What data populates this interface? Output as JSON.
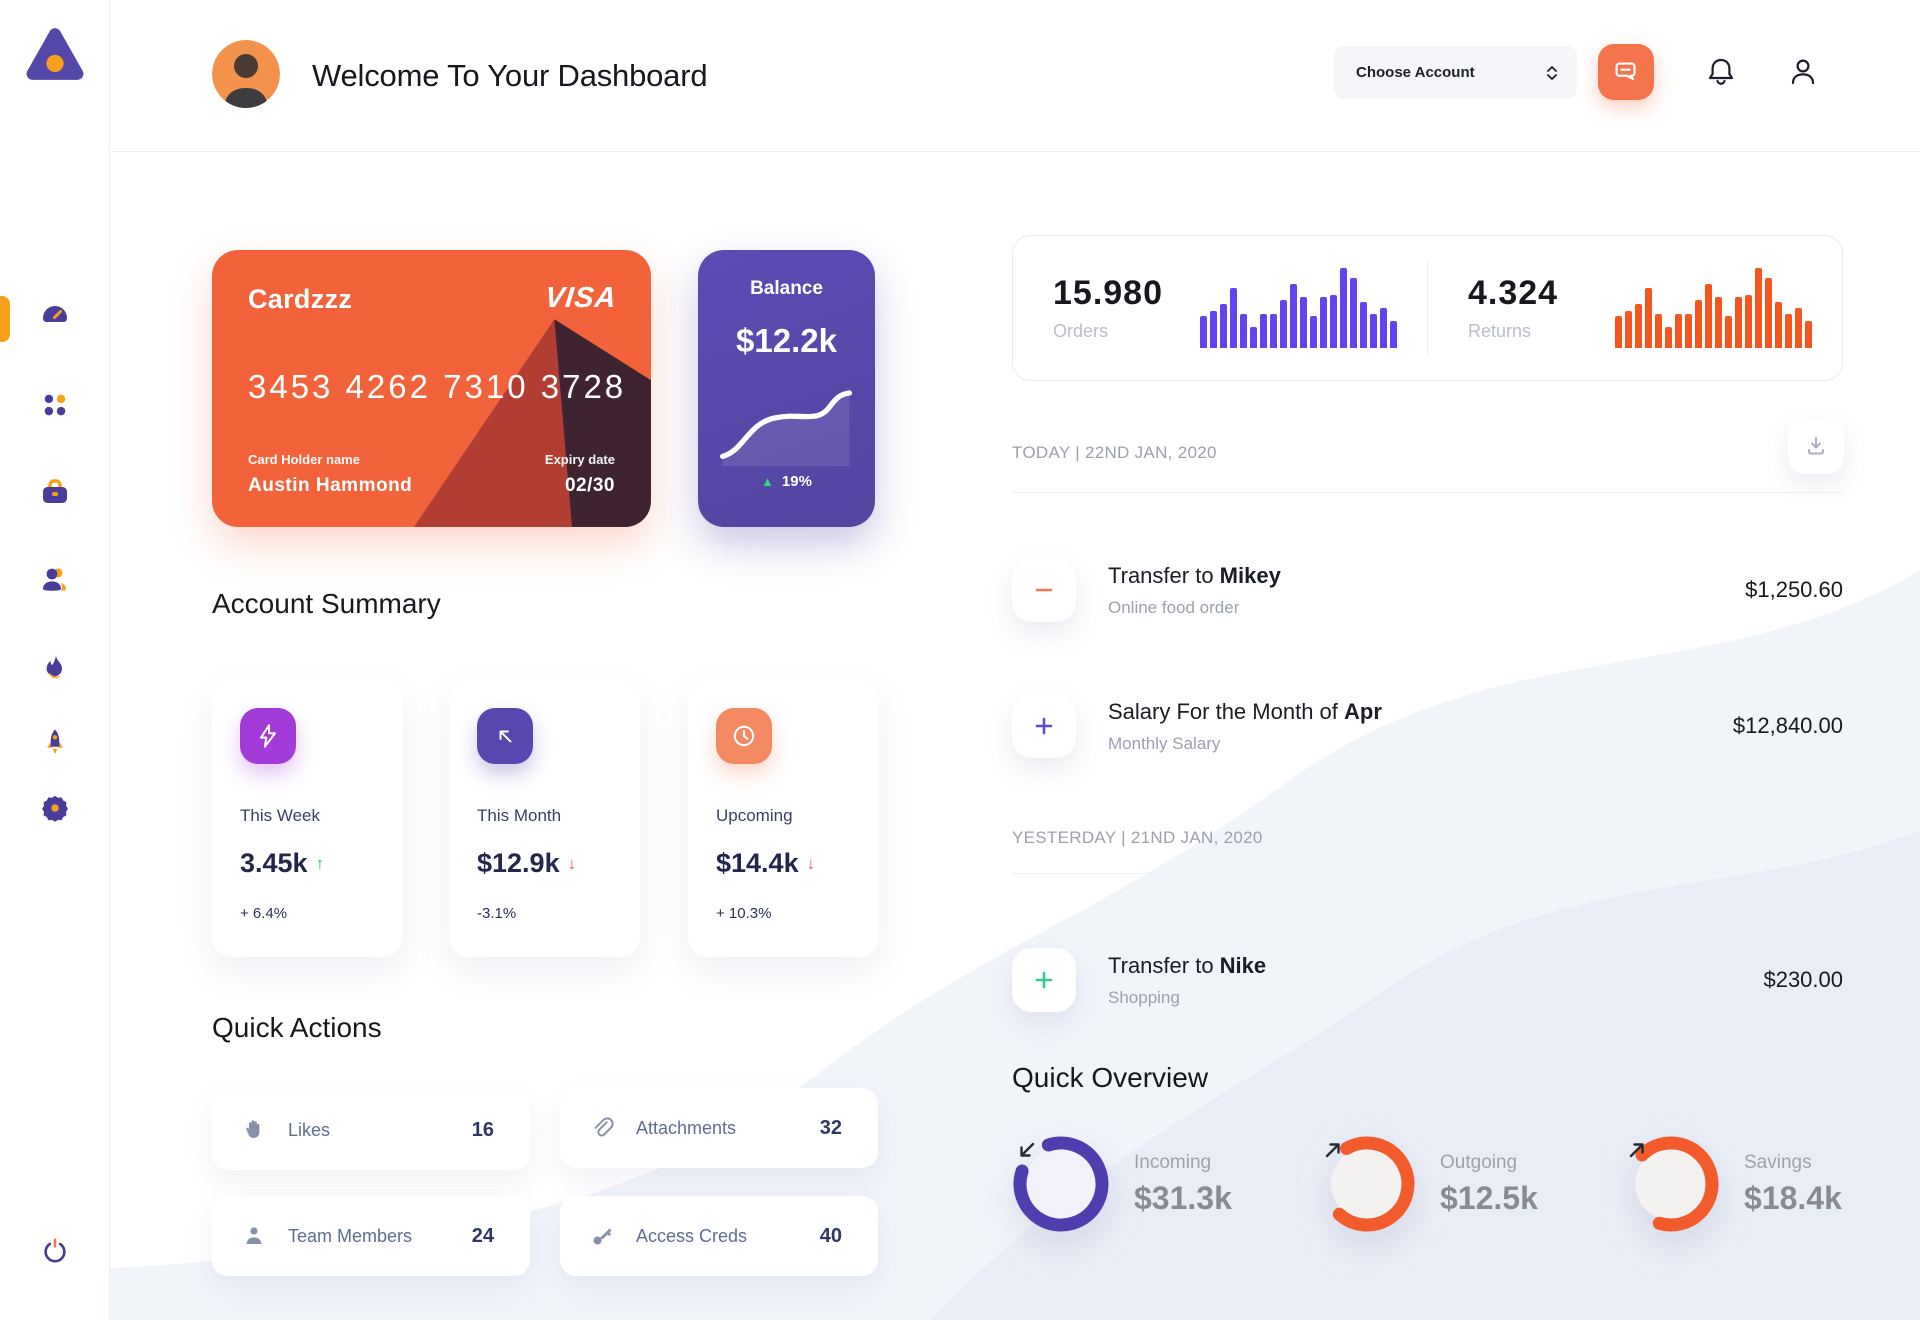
{
  "header": {
    "title": "Welcome To Your Dashboard",
    "account_select_label": "Choose Account"
  },
  "credit_card": {
    "label": "Cardzzz",
    "brand": "VISA",
    "number": "3453 4262 7310 3728",
    "holder_label": "Card Holder name",
    "holder_name": "Austin Hammond",
    "expiry_label": "Expiry date",
    "expiry": "02/30"
  },
  "balance_card": {
    "title": "Balance",
    "amount": "$12.2k",
    "change": "19%",
    "trend": "up"
  },
  "account_summary": {
    "heading": "Account Summary",
    "cards": [
      {
        "label": "This Week",
        "value": "3.45k",
        "trend": "up",
        "arrow": "↑",
        "change": "+ 6.4%"
      },
      {
        "label": "This Month",
        "value": "$12.9k",
        "trend": "down",
        "arrow": "↓",
        "change": "-3.1%"
      },
      {
        "label": "Upcoming",
        "value": "$14.4k",
        "trend": "down",
        "arrow": "↓",
        "change": "+ 10.3%"
      }
    ]
  },
  "quick_actions": {
    "heading": "Quick Actions",
    "items": [
      {
        "label": "Likes",
        "count": "16"
      },
      {
        "label": "Attachments",
        "count": "32"
      },
      {
        "label": "Team Members",
        "count": "24"
      },
      {
        "label": "Access Creds",
        "count": "40"
      }
    ]
  },
  "stats": {
    "orders": {
      "value": "15.980",
      "label": "Orders"
    },
    "returns": {
      "value": "4.324",
      "label": "Returns"
    }
  },
  "chart_data": [
    {
      "type": "bar",
      "name": "orders-sparkline",
      "color": "#6143F0",
      "values": [
        40,
        46,
        55,
        75,
        42,
        26,
        42,
        42,
        60,
        80,
        64,
        40,
        64,
        66,
        100,
        87,
        58,
        42,
        50,
        34
      ]
    },
    {
      "type": "bar",
      "name": "returns-sparkline",
      "color": "#F5551F",
      "values": [
        40,
        46,
        55,
        75,
        42,
        26,
        42,
        42,
        60,
        80,
        64,
        40,
        64,
        66,
        100,
        87,
        58,
        42,
        50,
        34
      ]
    },
    {
      "type": "line",
      "name": "balance-trend",
      "label": "Balance",
      "end_value": "$12.2k",
      "change_pct": "19%"
    }
  ],
  "transactions": {
    "groups": [
      {
        "date_label": "TODAY | 22ND JAN, 2020",
        "items": [
          {
            "icon": "minus",
            "icon_color": "#F4764E",
            "title_prefix": "Transfer to ",
            "title_bold": "Mikey",
            "subtitle": "Online food order",
            "amount": "$1,250.60"
          },
          {
            "icon": "plus",
            "icon_color": "#5B4FD0",
            "title_prefix": "Salary For the Month of ",
            "title_bold": "Apr",
            "subtitle": "Monthly Salary",
            "amount": "$12,840.00"
          }
        ]
      },
      {
        "date_label": "YESTERDAY | 21ND JAN, 2020",
        "items": [
          {
            "icon": "plus",
            "icon_color": "#35C89B",
            "title_prefix": "Transfer to ",
            "title_bold": "Nike",
            "subtitle": "Shopping",
            "amount": "$230.00"
          }
        ]
      }
    ]
  },
  "quick_overview": {
    "heading": "Quick Overview",
    "items": [
      {
        "label": "Incoming",
        "value": "$31.3k",
        "direction": "down-left",
        "ring_color": "#4F3EAE",
        "ring_percent": 85
      },
      {
        "label": "Outgoing",
        "value": "$12.5k",
        "direction": "up-right",
        "ring_color": "#F45B2C",
        "ring_percent": 70
      },
      {
        "label": "Savings",
        "value": "$18.4k",
        "direction": "up-right",
        "ring_color": "#F45B2C",
        "ring_percent": 67
      }
    ]
  },
  "colors": {
    "accent_orange": "#F4744E",
    "accent_purple": "#5B4CB4",
    "bar_purple": "#6143F0",
    "bar_orange": "#F5551F",
    "sidebar_icon_purple": "#4A3D99",
    "sidebar_icon_orange": "#F9A01B",
    "positive_green": "#2BB673",
    "negative_red": "#E25C5C"
  }
}
